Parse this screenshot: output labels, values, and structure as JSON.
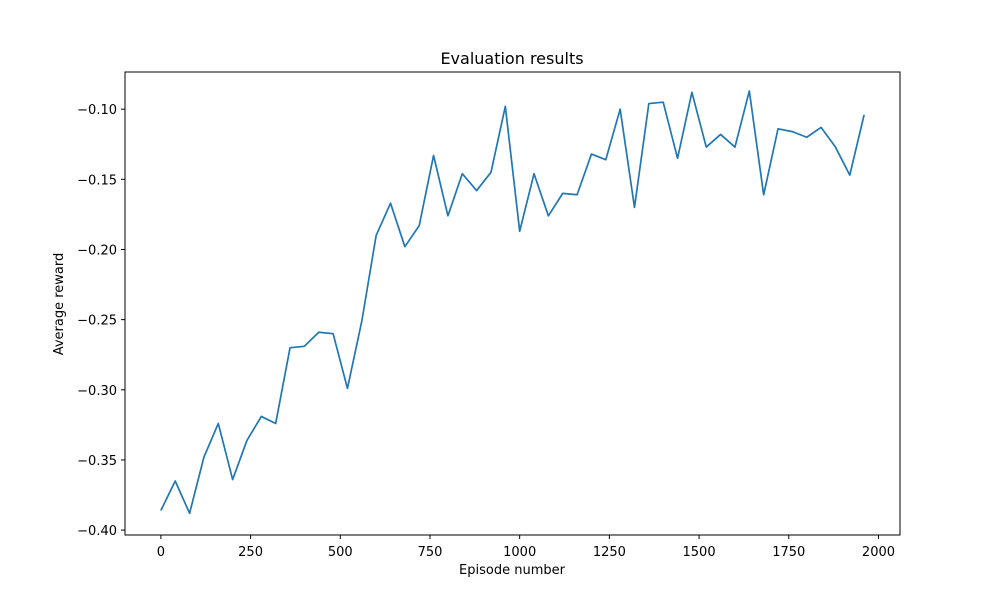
{
  "chart_data": {
    "type": "line",
    "title": "Evaluation results",
    "xlabel": "Episode number",
    "ylabel": "Average reward",
    "xlim": [
      -100,
      2060
    ],
    "ylim": [
      -0.4035,
      -0.0735
    ],
    "xticks": [
      0,
      250,
      500,
      750,
      1000,
      1250,
      1500,
      1750,
      2000
    ],
    "yticks": [
      -0.4,
      -0.35,
      -0.3,
      -0.25,
      -0.2,
      -0.15,
      -0.1
    ],
    "ytick_labels": [
      "−0.40",
      "−0.35",
      "−0.30",
      "−0.25",
      "−0.20",
      "−0.15",
      "−0.10"
    ],
    "grid": false,
    "series": [
      {
        "color": "#1f77b4",
        "x": [
          0,
          40,
          80,
          120,
          160,
          200,
          240,
          280,
          320,
          360,
          400,
          440,
          480,
          520,
          560,
          600,
          640,
          680,
          720,
          760,
          800,
          840,
          880,
          920,
          960,
          1000,
          1040,
          1080,
          1120,
          1160,
          1200,
          1240,
          1280,
          1320,
          1360,
          1400,
          1440,
          1480,
          1520,
          1560,
          1600,
          1640,
          1680,
          1720,
          1760,
          1800,
          1840,
          1880,
          1920,
          1960
        ],
        "y": [
          -0.386,
          -0.365,
          -0.388,
          -0.348,
          -0.324,
          -0.364,
          -0.336,
          -0.319,
          -0.324,
          -0.27,
          -0.269,
          -0.259,
          -0.26,
          -0.299,
          -0.251,
          -0.19,
          -0.167,
          -0.198,
          -0.183,
          -0.133,
          -0.176,
          -0.146,
          -0.158,
          -0.145,
          -0.098,
          -0.187,
          -0.146,
          -0.176,
          -0.16,
          -0.161,
          -0.132,
          -0.136,
          -0.1,
          -0.17,
          -0.096,
          -0.095,
          -0.135,
          -0.088,
          -0.127,
          -0.118,
          -0.127,
          -0.087,
          -0.161,
          -0.114,
          -0.116,
          -0.12,
          -0.113,
          -0.127,
          -0.147,
          -0.104
        ]
      }
    ]
  }
}
